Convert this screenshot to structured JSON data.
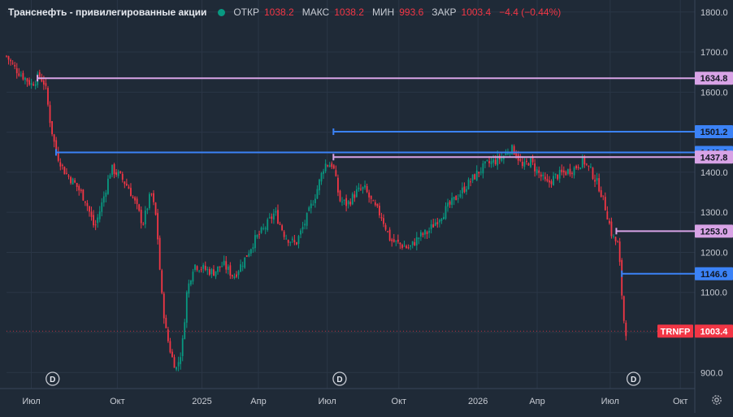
{
  "legend": {
    "symbol_name": "Транснефть - привилегированные акции",
    "status_color": "#089981",
    "open_label": "ОТКР",
    "open_value": "1038.2",
    "high_label": "МАКС",
    "high_value": "1038.2",
    "low_label": "МИН",
    "low_value": "993.6",
    "close_label": "ЗАКР",
    "close_value": "1003.4",
    "change": "−4.4 (−0.44%)"
  },
  "colors": {
    "background": "#1f2a37",
    "up": "#089981",
    "down": "#f23645",
    "pink_line": "#d8a3e6",
    "blue_line": "#3b82f6",
    "grid": "#2a3646"
  },
  "icons": {
    "settings": "gear-icon",
    "dividend": "dividend-marker-icon"
  },
  "chart_data": {
    "type": "candlestick",
    "ticker": "TRNFP",
    "last_price": 1003.4,
    "last_price_label": "1003.4",
    "ylim": [
      860,
      1830
    ],
    "y_ticks": [
      900,
      1000,
      1100,
      1200,
      1300,
      1400,
      1500,
      1600,
      1700,
      1800
    ],
    "y_tick_labels": [
      "900.0",
      "1000.0",
      "1100.0",
      "1200.0",
      "1300.0",
      "1400.0",
      "1500.0",
      "1600.0",
      "1700.0",
      "1800.0"
    ],
    "x_ticks": [
      {
        "label": "Июл",
        "t": 0.036
      },
      {
        "label": "Окт",
        "t": 0.161
      },
      {
        "label": "2025",
        "t": 0.284
      },
      {
        "label": "Апр",
        "t": 0.366
      },
      {
        "label": "Июл",
        "t": 0.466
      },
      {
        "label": "Окт",
        "t": 0.57
      },
      {
        "label": "2026",
        "t": 0.685
      },
      {
        "label": "Апр",
        "t": 0.771
      },
      {
        "label": "Июл",
        "t": 0.877
      },
      {
        "label": "Окт",
        "t": 0.979
      }
    ],
    "level_lines": [
      {
        "value": 1634.8,
        "label": "1634.8",
        "style": "pink",
        "from_t": 0.045
      },
      {
        "value": 1501.2,
        "label": "1501.2",
        "style": "blue",
        "from_t": 0.475
      },
      {
        "value": 1449.6,
        "label": "1449.6",
        "style": "blue",
        "from_t": 0.072
      },
      {
        "value": 1437.8,
        "label": "1437.8",
        "style": "pink",
        "from_t": 0.475
      },
      {
        "value": 1253.0,
        "label": "1253.0",
        "style": "pink",
        "from_t": 0.886
      },
      {
        "value": 1146.6,
        "label": "1146.6",
        "style": "blue",
        "from_t": 0.894
      }
    ],
    "dividend_markers": [
      {
        "label": "D",
        "t": 0.067
      },
      {
        "label": "D",
        "t": 0.484
      },
      {
        "label": "D",
        "t": 0.911
      }
    ],
    "price_path": [
      [
        0.0,
        1690
      ],
      [
        0.012,
        1660
      ],
      [
        0.024,
        1640
      ],
      [
        0.036,
        1620
      ],
      [
        0.048,
        1640
      ],
      [
        0.056,
        1620
      ],
      [
        0.064,
        1520
      ],
      [
        0.072,
        1450
      ],
      [
        0.085,
        1400
      ],
      [
        0.1,
        1370
      ],
      [
        0.115,
        1330
      ],
      [
        0.128,
        1260
      ],
      [
        0.14,
        1330
      ],
      [
        0.152,
        1410
      ],
      [
        0.165,
        1390
      ],
      [
        0.178,
        1360
      ],
      [
        0.19,
        1310
      ],
      [
        0.198,
        1270
      ],
      [
        0.21,
        1350
      ],
      [
        0.218,
        1280
      ],
      [
        0.225,
        1100
      ],
      [
        0.232,
        1000
      ],
      [
        0.24,
        940
      ],
      [
        0.247,
        910
      ],
      [
        0.255,
        960
      ],
      [
        0.262,
        1100
      ],
      [
        0.272,
        1170
      ],
      [
        0.285,
        1160
      ],
      [
        0.3,
        1150
      ],
      [
        0.315,
        1170
      ],
      [
        0.33,
        1140
      ],
      [
        0.345,
        1180
      ],
      [
        0.36,
        1230
      ],
      [
        0.375,
        1260
      ],
      [
        0.39,
        1300
      ],
      [
        0.405,
        1240
      ],
      [
        0.42,
        1220
      ],
      [
        0.435,
        1280
      ],
      [
        0.45,
        1350
      ],
      [
        0.462,
        1420
      ],
      [
        0.474,
        1420
      ],
      [
        0.484,
        1330
      ],
      [
        0.495,
        1320
      ],
      [
        0.508,
        1350
      ],
      [
        0.52,
        1360
      ],
      [
        0.532,
        1320
      ],
      [
        0.545,
        1290
      ],
      [
        0.558,
        1230
      ],
      [
        0.572,
        1220
      ],
      [
        0.585,
        1210
      ],
      [
        0.6,
        1240
      ],
      [
        0.612,
        1250
      ],
      [
        0.625,
        1280
      ],
      [
        0.64,
        1310
      ],
      [
        0.655,
        1340
      ],
      [
        0.67,
        1370
      ],
      [
        0.685,
        1400
      ],
      [
        0.698,
        1420
      ],
      [
        0.712,
        1430
      ],
      [
        0.722,
        1440
      ],
      [
        0.732,
        1460
      ],
      [
        0.74,
        1450
      ],
      [
        0.75,
        1410
      ],
      [
        0.76,
        1430
      ],
      [
        0.772,
        1400
      ],
      [
        0.785,
        1370
      ],
      [
        0.798,
        1390
      ],
      [
        0.812,
        1400
      ],
      [
        0.825,
        1410
      ],
      [
        0.838,
        1430
      ],
      [
        0.85,
        1400
      ],
      [
        0.862,
        1360
      ],
      [
        0.872,
        1300
      ],
      [
        0.88,
        1240
      ],
      [
        0.888,
        1220
      ],
      [
        0.892,
        1150
      ],
      [
        0.896,
        1040
      ],
      [
        0.9,
        1003
      ]
    ]
  }
}
